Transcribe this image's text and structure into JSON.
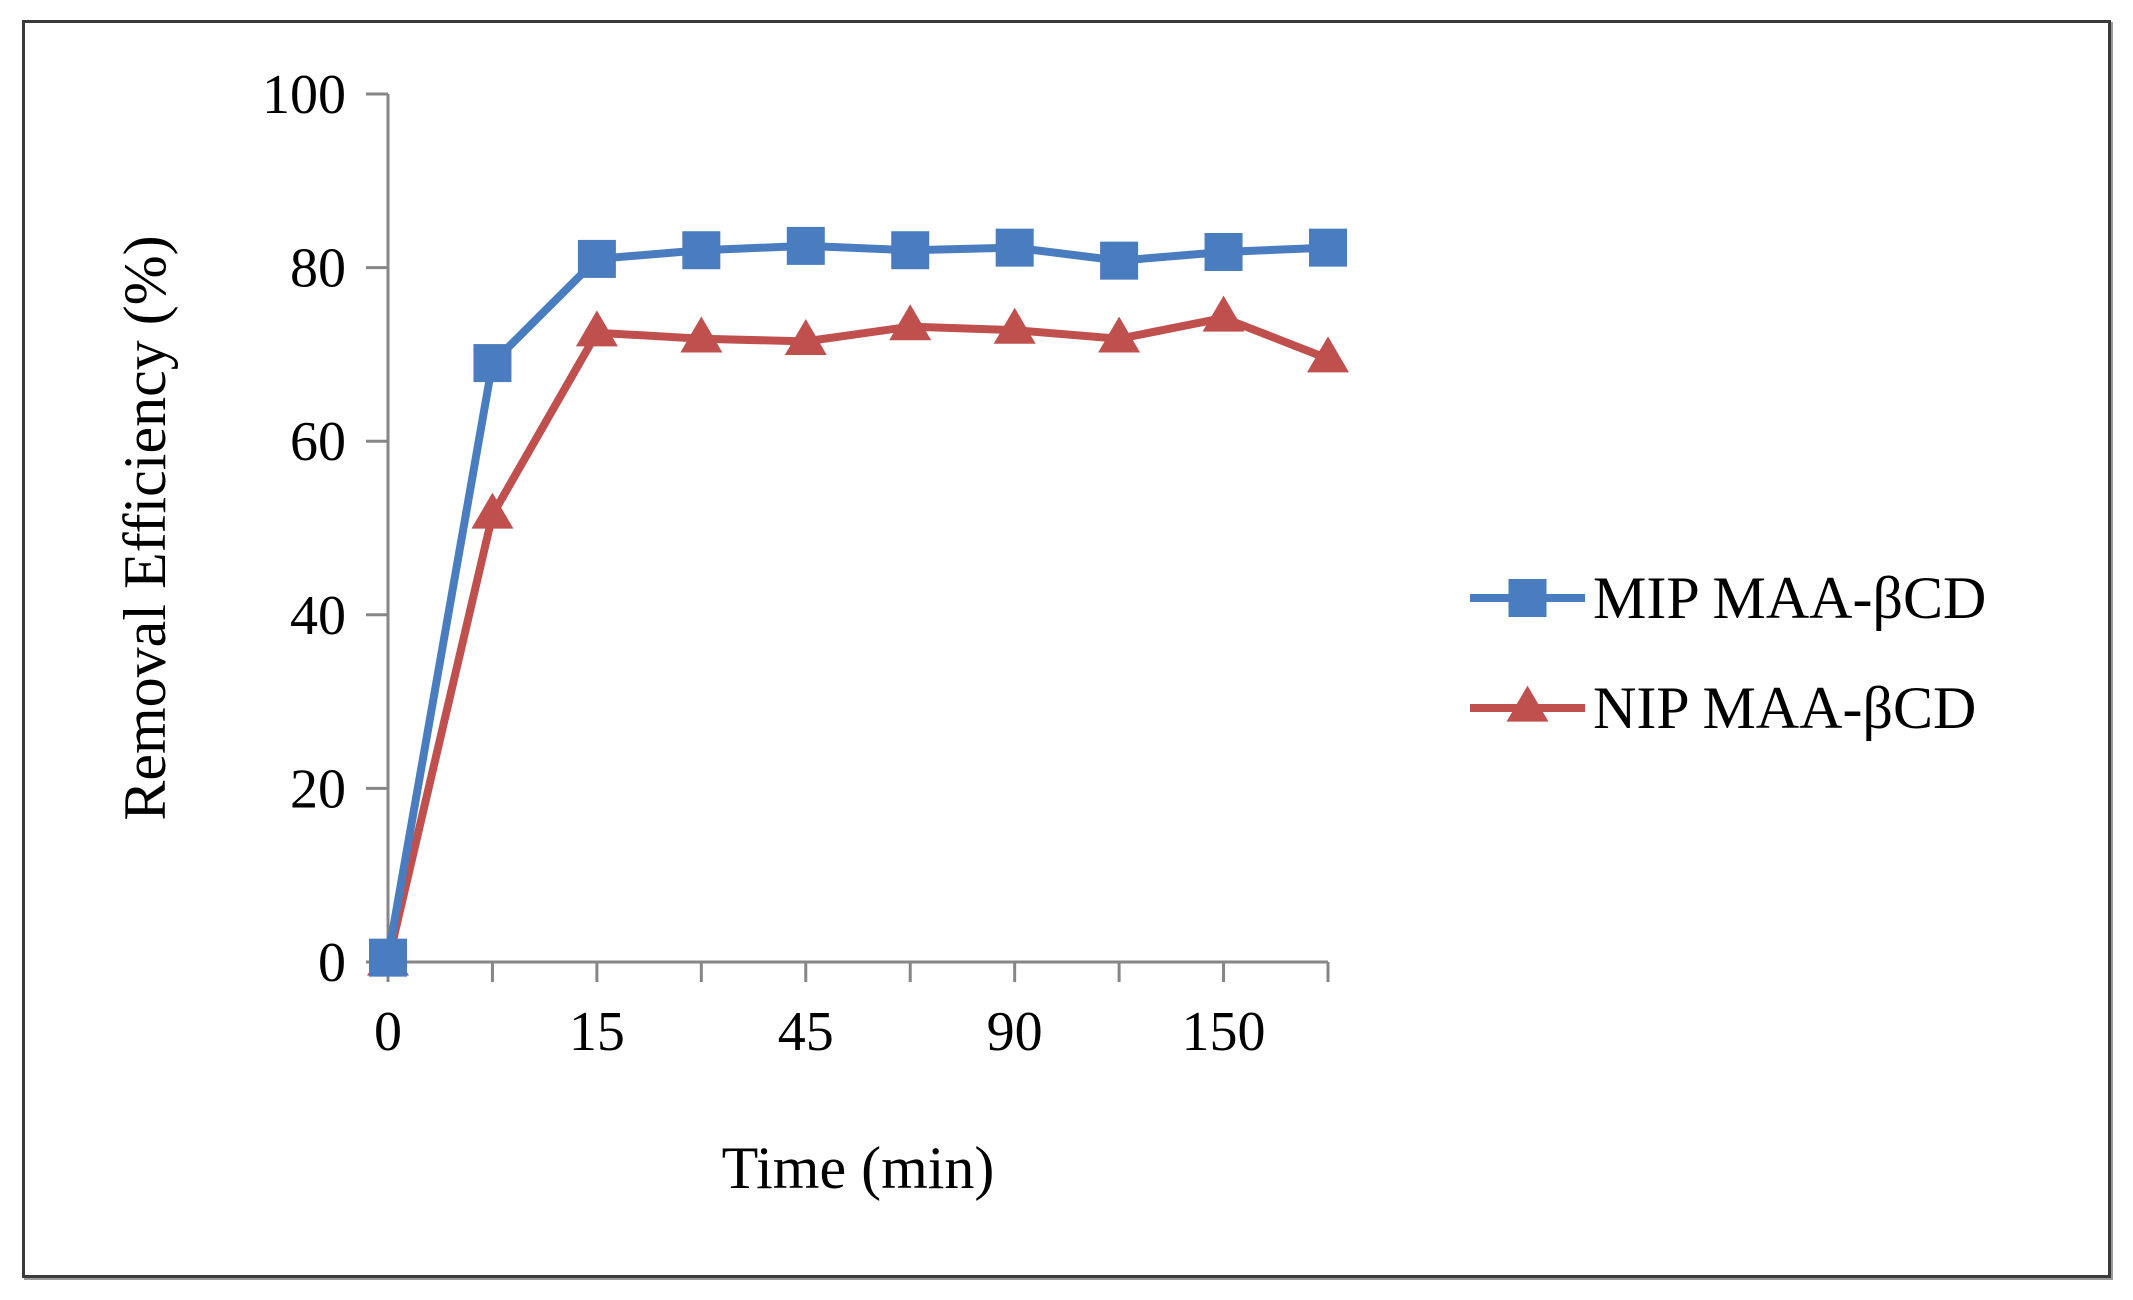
{
  "chart_data": {
    "type": "line",
    "title": "",
    "xlabel": "Time (min)",
    "ylabel": "Removal Efficiency (%)",
    "ylim": [
      0,
      100
    ],
    "yticks": [
      0,
      20,
      40,
      60,
      80,
      100
    ],
    "x_category_count": 10,
    "x_tick_labels": [
      {
        "index": 0,
        "label": "0"
      },
      {
        "index": 2,
        "label": "15"
      },
      {
        "index": 4,
        "label": "45"
      },
      {
        "index": 6,
        "label": "90"
      },
      {
        "index": 8,
        "label": "150"
      }
    ],
    "grid": false,
    "legend_position": "right",
    "series": [
      {
        "name": "MIP MAA-βCD",
        "color": "#4a7dbf",
        "marker": "square",
        "values": [
          0.5,
          69,
          81,
          82,
          82.5,
          82,
          82.3,
          80.8,
          81.8,
          82.3
        ]
      },
      {
        "name": "NIP MAA-βCD",
        "color": "#c0504d",
        "marker": "triangle",
        "values": [
          0,
          51.5,
          72.5,
          71.8,
          71.5,
          73.2,
          72.8,
          71.8,
          74.2,
          69.5
        ]
      }
    ]
  }
}
